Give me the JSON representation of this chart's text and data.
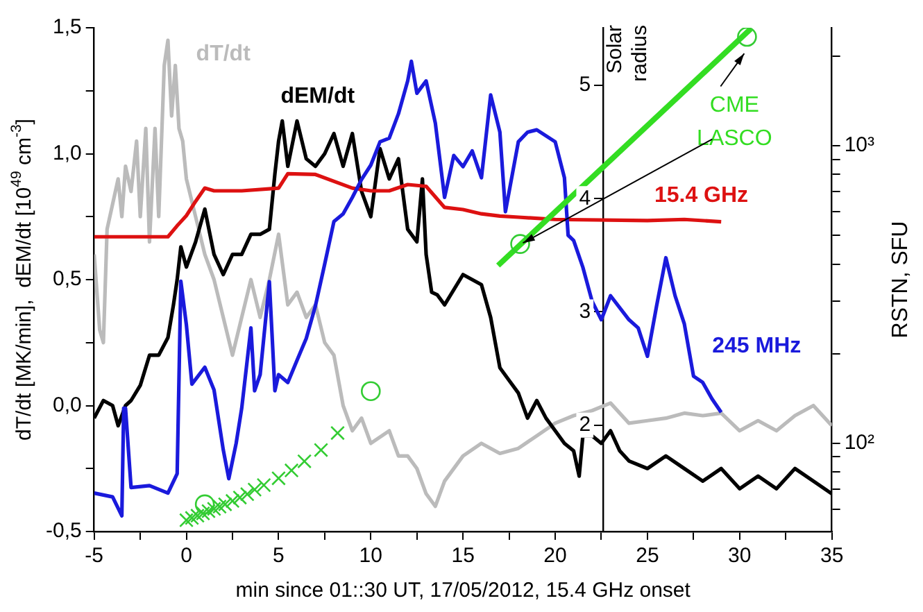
{
  "chart_data": {
    "type": "line",
    "xlabel": "min since 01::30 UT, 17/05/2012, 15.4 GHz onset",
    "ylabel": "dT/dt [MK/min],  dEM/dt [10$^{49}$ cm$^{-3}$]",
    "y2label": "RSTN, SFU",
    "y3label": "Solar radius",
    "annotations": [
      {
        "text": "CME LASCO",
        "x": 18.1,
        "y": 0.64
      }
    ],
    "legend": false,
    "grid": false,
    "xlim": [
      -5,
      35
    ],
    "xticks": [
      -5,
      {
        "value": -2.5,
        "label": null
      },
      0,
      {
        "value": 2.5,
        "label": null
      },
      5,
      {
        "value": 7.5,
        "label": null
      },
      10,
      {
        "value": 12.5,
        "label": null
      },
      15,
      {
        "value": 17.5,
        "label": null
      },
      20,
      {
        "value": 22.5,
        "label": null
      },
      25,
      {
        "value": 27.5,
        "label": null
      },
      30,
      {
        "value": 32.5,
        "label": null
      },
      35
    ],
    "ylim": [
      -0.5,
      1.5
    ],
    "yticks": [
      {
        "value": -0.5,
        "label": "-0,5"
      },
      {
        "value": -0.25,
        "label": null
      },
      {
        "value": 0,
        "label": "0,0"
      },
      {
        "value": 0.25,
        "label": null
      },
      {
        "value": 0.5,
        "label": "0,5"
      },
      {
        "value": 0.75,
        "label": null
      },
      {
        "value": 1,
        "label": "1,0"
      },
      {
        "value": 1.25,
        "label": null
      },
      {
        "value": 1.5,
        "label": "1,5"
      }
    ],
    "log": "y2",
    "y2lim": [
      50.5,
      2490
    ],
    "y2ticks": [
      {
        "value": 60,
        "label": null
      },
      {
        "value": 70,
        "label": null
      },
      {
        "value": 80,
        "label": null
      },
      {
        "value": 90,
        "label": null
      },
      {
        "value": 100,
        "label": "10²"
      },
      {
        "value": 200,
        "label": null
      },
      {
        "value": 300,
        "label": null
      },
      {
        "value": 400,
        "label": null
      },
      {
        "value": 500,
        "label": null
      },
      {
        "value": 600,
        "label": null
      },
      {
        "value": 700,
        "label": null
      },
      {
        "value": 800,
        "label": null
      },
      {
        "value": 900,
        "label": null
      },
      {
        "value": 1000,
        "label": "10³"
      },
      {
        "value": 2000,
        "label": null
      }
    ],
    "y3lim": [
      1.06,
      5.51
    ],
    "y3ticks": [
      2,
      3,
      4,
      5
    ],
    "series": [
      {
        "name": "dT/dt",
        "color": "#bbbbbb",
        "type": "line",
        "x": [
          -5,
          -4.7,
          -4.5,
          -4.3,
          -4,
          -3.7,
          -3.5,
          -3.3,
          -3,
          -2.7,
          -2.5,
          -2.2,
          -2,
          -1.7,
          -1.5,
          -1.2,
          -1,
          -0.8,
          -0.6,
          -0.4,
          -0.2,
          0,
          0.5,
          1,
          1.5,
          2,
          2.5,
          3,
          3.5,
          4,
          4.5,
          5,
          5.5,
          6,
          6.5,
          7,
          7.5,
          8,
          8.5,
          9,
          9.5,
          10,
          11,
          11.5,
          12,
          12.5,
          13,
          13.5,
          14,
          15,
          16,
          17,
          18,
          19,
          20,
          21,
          22,
          23,
          24,
          25,
          26,
          27,
          28,
          29,
          30,
          31,
          32,
          33,
          34,
          35
        ],
        "values": [
          0.6,
          0.3,
          0.25,
          0.7,
          0.8,
          0.9,
          0.75,
          0.95,
          0.85,
          1.05,
          0.75,
          1.1,
          0.65,
          1.1,
          0.75,
          1.35,
          1.45,
          1.15,
          1.35,
          1.1,
          1.05,
          0.9,
          0.75,
          0.6,
          0.5,
          0.35,
          0.2,
          0.35,
          0.5,
          0.35,
          0.5,
          0.68,
          0.4,
          0.45,
          0.35,
          0.4,
          0.25,
          0.2,
          0,
          -0.1,
          -0.05,
          -0.15,
          -0.1,
          -0.2,
          -0.2,
          -0.25,
          -0.35,
          -0.4,
          -0.3,
          -0.2,
          -0.15,
          -0.19,
          -0.17,
          -0.12,
          -0.07,
          -0.04,
          -0.02,
          0.01,
          -0.07,
          -0.06,
          -0.05,
          -0.03,
          -0.04,
          -0.03,
          -0.1,
          -0.06,
          -0.1,
          -0.04,
          0,
          -0.08
        ]
      },
      {
        "name": "dEM/dt",
        "color": "#000000",
        "type": "line",
        "x": [
          -5,
          -4.5,
          -4,
          -3.7,
          -3.3,
          -3,
          -2.5,
          -2,
          -1.5,
          -1,
          -0.7,
          -0.5,
          -0.3,
          0,
          0.5,
          1,
          1.5,
          2,
          2.5,
          3,
          3.5,
          4,
          4.5,
          4.8,
          5,
          5.2,
          5.5,
          6,
          6.5,
          7,
          7.5,
          8,
          8.5,
          9,
          9.5,
          10,
          10.5,
          11,
          11.5,
          12,
          12.5,
          12.8,
          13,
          13.3,
          13.6,
          14,
          15,
          16,
          16.5,
          17,
          17.5,
          18,
          18.5,
          19,
          19.5,
          20,
          20.5,
          21,
          21.3,
          21.5,
          22,
          22.5,
          23,
          23.5,
          24,
          25,
          26,
          27,
          28,
          29,
          30,
          31,
          32,
          33,
          34,
          35
        ],
        "values": [
          -0.05,
          0.02,
          0,
          -0.08,
          0,
          0.02,
          0.08,
          0.2,
          0.2,
          0.27,
          0.4,
          0.5,
          0.63,
          0.55,
          0.65,
          0.78,
          0.6,
          0.52,
          0.6,
          0.6,
          0.68,
          0.68,
          0.7,
          0.92,
          1.05,
          1.13,
          0.95,
          1.13,
          0.98,
          0.95,
          1,
          1.08,
          0.95,
          1.08,
          0.85,
          0.75,
          1.02,
          0.9,
          0.98,
          0.7,
          0.65,
          0.9,
          0.6,
          0.45,
          0.44,
          0.4,
          0.52,
          0.48,
          0.35,
          0.15,
          0.1,
          0.05,
          -0.05,
          0.02,
          -0.05,
          -0.1,
          -0.15,
          -0.18,
          -0.28,
          -0.12,
          -0.12,
          -0.15,
          -0.1,
          -0.18,
          -0.22,
          -0.25,
          -0.2,
          -0.25,
          -0.3,
          -0.25,
          -0.33,
          -0.28,
          -0.33,
          -0.25,
          -0.3,
          -0.35
        ]
      },
      {
        "name": "15.4 GHz",
        "color": "#dd1111",
        "type": "line",
        "axis": "y2",
        "x": [
          -5,
          -1,
          -0.5,
          0,
          0.5,
          1,
          1.5,
          3,
          5,
          5.5,
          7,
          9,
          10,
          11,
          12,
          13,
          14,
          15,
          16,
          17,
          18,
          20,
          25,
          27,
          29
        ],
        "values": [
          494,
          494,
          538,
          582,
          650,
          720,
          705,
          705,
          720,
          805,
          800,
          720,
          705,
          705,
          740,
          730,
          620,
          610,
          590,
          580,
          575,
          565,
          560,
          565,
          555
        ]
      },
      {
        "name": "245 MHz",
        "color": "#1a1adc",
        "type": "line",
        "axis": "y2",
        "x": [
          -5,
          -4,
          -3.5,
          -3.4,
          -3.3,
          -3,
          -2,
          -1,
          -0.5,
          -0.3,
          0,
          0.3,
          1,
          1.5,
          2,
          2.3,
          2.7,
          3,
          3.5,
          3.7,
          4,
          4.5,
          4.8,
          5,
          5.5,
          6,
          6.5,
          7,
          7.5,
          8,
          8.5,
          9,
          9.5,
          10,
          10.5,
          11,
          11.5,
          12,
          12.2,
          12.5,
          13,
          13.5,
          14,
          14.5,
          15,
          15.5,
          16,
          16.5,
          17,
          17.3,
          18,
          18.5,
          19,
          20,
          20.5,
          20.7,
          21,
          21.5,
          22,
          22.5,
          23,
          24,
          24.5,
          25,
          25.5,
          26,
          26.5,
          27,
          27.5,
          28,
          28.5,
          29
        ],
        "values": [
          68,
          66,
          57,
          131,
          131,
          71,
          72,
          68,
          79,
          350,
          250,
          158,
          180,
          151,
          95,
          76,
          100,
          131,
          244,
          150,
          170,
          349,
          150,
          170,
          160,
          190,
          225,
          290,
          400,
          556,
          590,
          670,
          770,
          860,
          1030,
          1060,
          1280,
          1650,
          1920,
          1500,
          1650,
          1190,
          670,
          927,
          850,
          960,
          780,
          1480,
          1110,
          600,
          1030,
          1110,
          1130,
          1030,
          780,
          500,
          480,
          390,
          300,
          260,
          313,
          260,
          244,
          196,
          290,
          420,
          313,
          252,
          168,
          160,
          141,
          127
        ]
      },
      {
        "type": "line",
        "color": "#33dd22",
        "axis": "y3",
        "x": [
          16.9,
          30.6
        ],
        "values": [
          3.41,
          5.5
        ]
      },
      {
        "type": "scatter",
        "marker": "cross",
        "color": "#33cc33",
        "axis": "y3",
        "x": [
          0,
          0.3,
          0.6,
          0.9,
          1.2,
          1.5,
          1.8,
          2.1,
          2.5,
          2.9,
          3.3,
          3.7,
          4.2,
          5,
          5.7,
          6.4,
          7.3,
          8.2
        ],
        "values": [
          1.16,
          1.18,
          1.2,
          1.22,
          1.24,
          1.26,
          1.28,
          1.3,
          1.33,
          1.36,
          1.39,
          1.43,
          1.47,
          1.53,
          1.6,
          1.68,
          1.78,
          1.93
        ]
      },
      {
        "type": "scatter",
        "marker": "circle",
        "color": "#33cc33",
        "axis": "y3",
        "x": [
          1,
          10,
          18.1,
          30.4
        ],
        "values": [
          1.3,
          2.3,
          3.6,
          5.43
        ]
      }
    ]
  }
}
